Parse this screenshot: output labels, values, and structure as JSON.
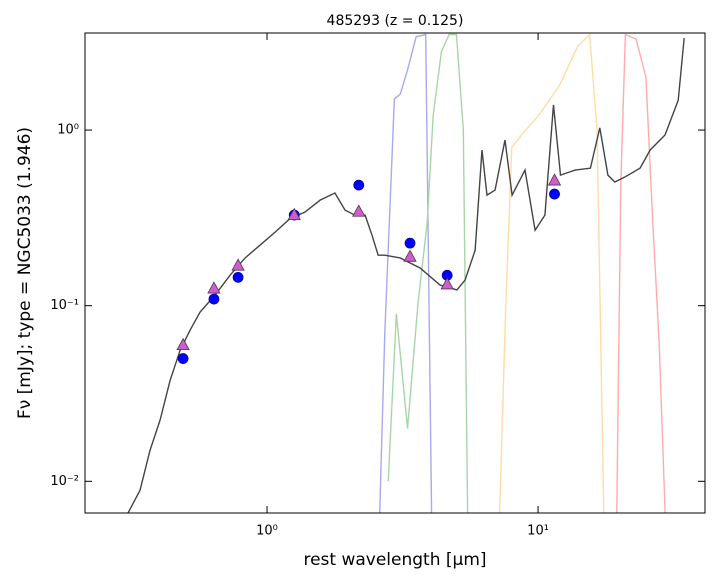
{
  "chart_data": {
    "type": "line",
    "title": "485293 (z = 0.125)",
    "xlabel": "rest wavelength [μm]",
    "ylabel": "Fν [mJy];  type = NGC5033 (1.946)",
    "xscale": "log",
    "yscale": "log",
    "xlim": [
      0.213,
      41.3
    ],
    "ylim": [
      0.0066,
      3.57
    ],
    "xticks": [
      {
        "value": 1,
        "label": "10⁰"
      },
      {
        "value": 10,
        "label": "10¹"
      }
    ],
    "yticks": [
      {
        "value": 0.01,
        "label": "10⁻²"
      },
      {
        "value": 0.1,
        "label": "10⁻¹"
      },
      {
        "value": 1,
        "label": "10⁰"
      }
    ],
    "series": [
      {
        "color": "#a9a9ec",
        "marker": "none",
        "x": [
          2.6,
          2.72,
          2.95,
          3.1,
          3.3,
          3.55,
          3.85,
          4.05
        ],
        "values": [
          0.006,
          0.07,
          1.5,
          1.6,
          2.2,
          3.4,
          3.5,
          0.006
        ]
      },
      {
        "color": "#a8d5a8",
        "marker": "none",
        "x": [
          2.8,
          3.0,
          3.3,
          3.6,
          3.9,
          4.1,
          4.4,
          4.7,
          5.0,
          5.3,
          5.5
        ],
        "values": [
          0.01,
          0.09,
          0.02,
          0.1,
          0.3,
          1.2,
          2.8,
          3.5,
          3.5,
          1.0,
          0.006
        ]
      },
      {
        "color": "#ffdca6",
        "marker": "none",
        "x": [
          7.2,
          7.6,
          8.0,
          9.0,
          10,
          12,
          14,
          15.5,
          16.5,
          17.5
        ],
        "values": [
          0.006,
          0.1,
          0.8,
          1.0,
          1.2,
          1.8,
          3.0,
          3.5,
          1.0,
          0.006
        ]
      },
      {
        "color": "#ffabab",
        "marker": "none",
        "x": [
          19.5,
          20.2,
          21,
          23,
          25,
          26.5,
          28,
          29.5
        ],
        "values": [
          0.006,
          0.5,
          3.5,
          3.3,
          2.0,
          0.3,
          0.06,
          0.006
        ]
      },
      {
        "color": "#444444",
        "marker": "none",
        "x": [
          0.307,
          0.34,
          0.37,
          0.403,
          0.439,
          0.478,
          0.52,
          0.566,
          0.643,
          0.73,
          0.83,
          0.942,
          1.07,
          1.22,
          1.38,
          1.57,
          1.78,
          1.94,
          2.11,
          2.3,
          2.44,
          2.57,
          2.72,
          3.1,
          3.67,
          4.35,
          5.02,
          5.38,
          5.86,
          6.21,
          6.48,
          6.94,
          7.55,
          8.02,
          8.95,
          9.75,
          10.6,
          11.4,
          12.1,
          13.7,
          15.6,
          16.9,
          18.1,
          19.2,
          20.9,
          23.8,
          25.9,
          29.4,
          32.9,
          34.6
        ],
        "values": [
          0.0066,
          0.0089,
          0.015,
          0.0223,
          0.0376,
          0.0557,
          0.0725,
          0.0918,
          0.115,
          0.149,
          0.187,
          0.221,
          0.262,
          0.315,
          0.341,
          0.399,
          0.438,
          0.35,
          0.328,
          0.328,
          0.252,
          0.194,
          0.194,
          0.187,
          0.164,
          0.131,
          0.123,
          0.14,
          0.207,
          0.769,
          0.426,
          0.455,
          0.877,
          0.426,
          0.592,
          0.269,
          0.328,
          1.39,
          0.554,
          0.592,
          0.607,
          1.03,
          0.554,
          0.506,
          0.54,
          0.607,
          0.769,
          0.937,
          1.48,
          3.34
        ]
      },
      {
        "color": "#0000ff",
        "marker": "circle",
        "x": [
          0.49,
          0.637,
          0.782,
          1.26,
          2.18,
          3.37,
          4.62,
          11.5
        ],
        "values": [
          0.05,
          0.109,
          0.145,
          0.328,
          0.486,
          0.227,
          0.149,
          0.432
        ]
      },
      {
        "color": "#cc5fcc",
        "marker": "triangle",
        "x": [
          0.49,
          0.637,
          0.782,
          1.26,
          2.18,
          3.37,
          4.62,
          11.5
        ],
        "values": [
          0.06,
          0.126,
          0.17,
          0.33,
          0.345,
          0.191,
          0.133,
          0.519
        ]
      }
    ]
  }
}
